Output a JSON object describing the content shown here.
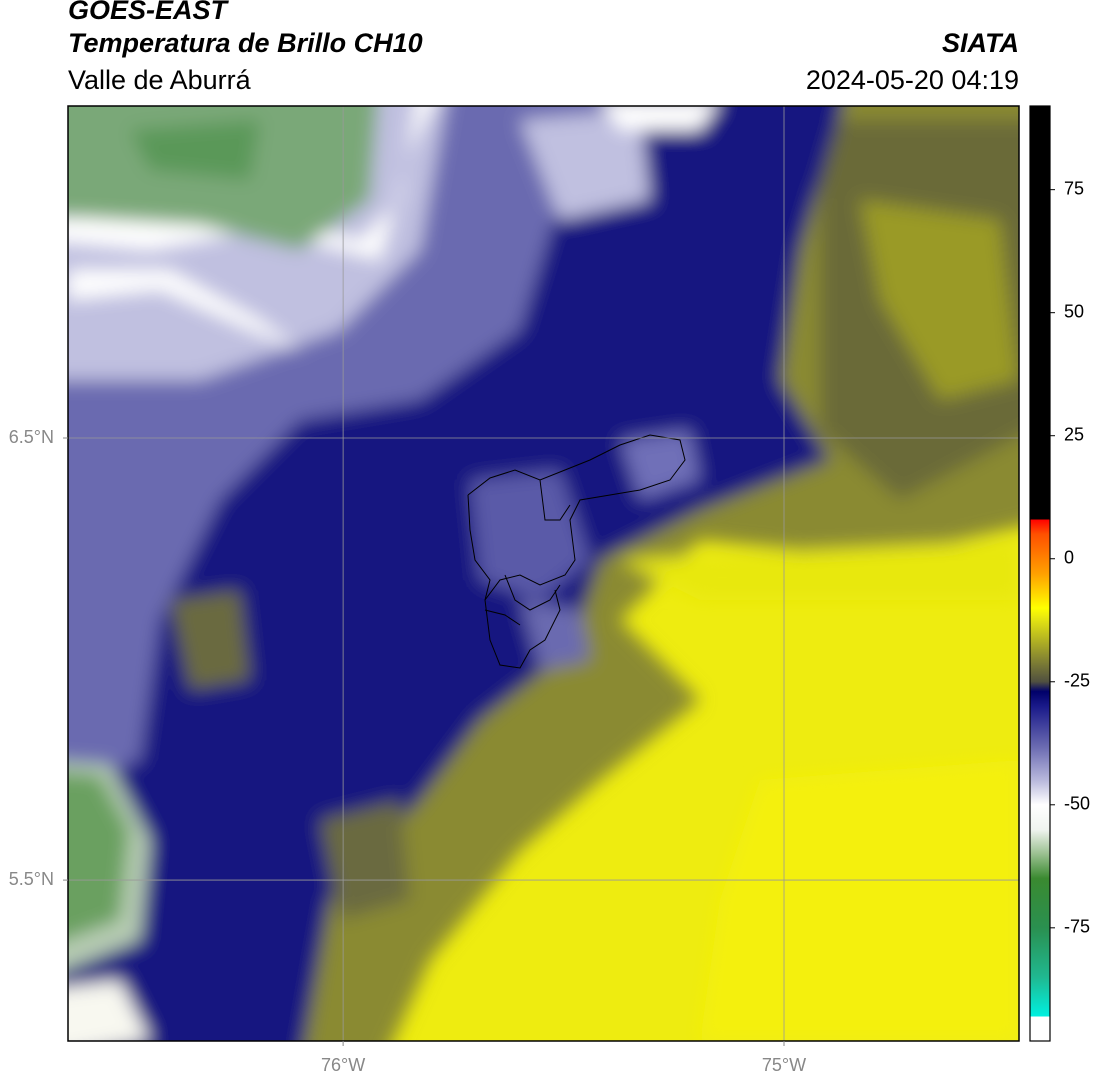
{
  "title": "GOES-EAST",
  "subtitle": "Temperatura de Brillo CH10",
  "region": "Valle de Aburrá",
  "source": "SIATA",
  "timestamp": "2024-05-20 04:19",
  "map": {
    "type": "map",
    "xlim": [
      -76.624,
      -74.467
    ],
    "ylim": [
      5.136,
      7.251
    ],
    "xticks": [
      {
        "value": -76,
        "label": "76°W"
      },
      {
        "value": -75,
        "label": "75°W"
      }
    ],
    "yticks": [
      {
        "value": 5.5,
        "label": "5.5°N"
      },
      {
        "value": 6.5,
        "label": "6.5°N"
      }
    ],
    "grid": true
  },
  "colorbar": {
    "lim": [
      -98,
      92
    ],
    "ticks": [
      -75,
      -50,
      -25,
      0,
      25,
      50,
      75
    ],
    "stops": [
      {
        "value": -98,
        "color": "#ffffff"
      },
      {
        "value": -93,
        "color": "#ffffff"
      },
      {
        "value": -93,
        "color": "#00f0e0"
      },
      {
        "value": -85,
        "color": "#20b890"
      },
      {
        "value": -75,
        "color": "#2a9050"
      },
      {
        "value": -65,
        "color": "#3a8a30"
      },
      {
        "value": -60,
        "color": "#9ac090"
      },
      {
        "value": -55,
        "color": "#f0f4f0"
      },
      {
        "value": -50,
        "color": "#ffffff"
      },
      {
        "value": -45,
        "color": "#b8b8dc"
      },
      {
        "value": -38,
        "color": "#6868b0"
      },
      {
        "value": -30,
        "color": "#1a1a8a"
      },
      {
        "value": -27,
        "color": "#00006a"
      },
      {
        "value": -25,
        "color": "#505040"
      },
      {
        "value": -20,
        "color": "#8a8a30"
      },
      {
        "value": -12,
        "color": "#e8e810"
      },
      {
        "value": -10,
        "color": "#ffff00"
      },
      {
        "value": -3,
        "color": "#ffa000"
      },
      {
        "value": 5,
        "color": "#ff5000"
      },
      {
        "value": 8,
        "color": "#ff0000"
      },
      {
        "value": 8,
        "color": "#000000"
      },
      {
        "value": 92,
        "color": "#000000"
      }
    ]
  }
}
